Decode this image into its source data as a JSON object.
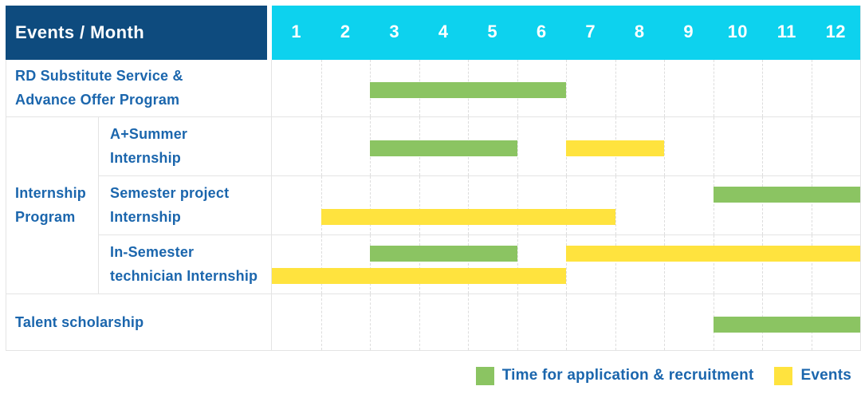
{
  "colors": {
    "green": "#8bc462",
    "yellow": "#ffe33e",
    "navy": "#0e4b7e",
    "cyan": "#0dd2ee",
    "label_blue": "#1b66ad",
    "grid": "#e4e4e4"
  },
  "chart_data": {
    "type": "bar",
    "subtype": "gantt-schedule",
    "title": "Events / Month",
    "corner_label": "Events / Month",
    "xlabel": "Month",
    "x_ticks": [
      "1",
      "2",
      "3",
      "4",
      "5",
      "6",
      "7",
      "8",
      "9",
      "10",
      "11",
      "12"
    ],
    "x_range": [
      1,
      12
    ],
    "grid": "vertical-dashed",
    "legend_position": "bottom-right",
    "group": {
      "label": "Internship Program",
      "label_lines": [
        "Internship",
        "Program"
      ]
    },
    "rows": [
      {
        "key": "rd-substitute",
        "label": "RD Substitute Service & Advance Offer Program",
        "label_lines": [
          "RD Substitute Service &",
          "Advance Offer Program"
        ],
        "group": null,
        "lanes": 1,
        "bars": [
          {
            "series": "Time for application & recruitment",
            "color_key": "green",
            "start_month": 3,
            "end_month": 6,
            "lane": 0
          }
        ]
      },
      {
        "key": "a-plus-summer",
        "label": "A+Summer Internship",
        "label_lines": [
          "A+Summer",
          "Internship"
        ],
        "group": "Internship Program",
        "lanes": 1,
        "bars": [
          {
            "series": "Time for application & recruitment",
            "color_key": "green",
            "start_month": 3,
            "end_month": 5,
            "lane": 0
          },
          {
            "series": "Events",
            "color_key": "yellow",
            "start_month": 7,
            "end_month": 8,
            "lane": 0
          }
        ]
      },
      {
        "key": "semester-project",
        "label": "Semester project Internship",
        "label_lines": [
          "Semester project",
          "Internship"
        ],
        "group": "Internship Program",
        "lanes": 2,
        "bars": [
          {
            "series": "Time for application & recruitment",
            "color_key": "green",
            "start_month": 10,
            "end_month": 12,
            "lane": 0
          },
          {
            "series": "Events",
            "color_key": "yellow",
            "start_month": 2,
            "end_month": 7,
            "lane": 1
          }
        ]
      },
      {
        "key": "in-semester-technician",
        "label": "In-Semester technician Internship",
        "label_lines": [
          "In-Semester",
          "technician Internship"
        ],
        "group": "Internship Program",
        "lanes": 2,
        "bars": [
          {
            "series": "Time for application & recruitment",
            "color_key": "green",
            "start_month": 3,
            "end_month": 5,
            "lane": 0
          },
          {
            "series": "Events",
            "color_key": "yellow",
            "start_month": 7,
            "end_month": 12,
            "lane": 0
          },
          {
            "series": "Events",
            "color_key": "yellow",
            "start_month": 1,
            "end_month": 6,
            "lane": 1
          }
        ]
      },
      {
        "key": "talent-scholarship",
        "label": "Talent scholarship",
        "label_lines": [
          "Talent scholarship"
        ],
        "group": null,
        "lanes": 1,
        "bars": [
          {
            "series": "Time for application & recruitment",
            "color_key": "green",
            "start_month": 10,
            "end_month": 12,
            "lane": 0
          }
        ]
      }
    ],
    "legend": [
      {
        "color_key": "green",
        "label": "Time for application & recruitment"
      },
      {
        "color_key": "yellow",
        "label": "Events"
      }
    ]
  }
}
